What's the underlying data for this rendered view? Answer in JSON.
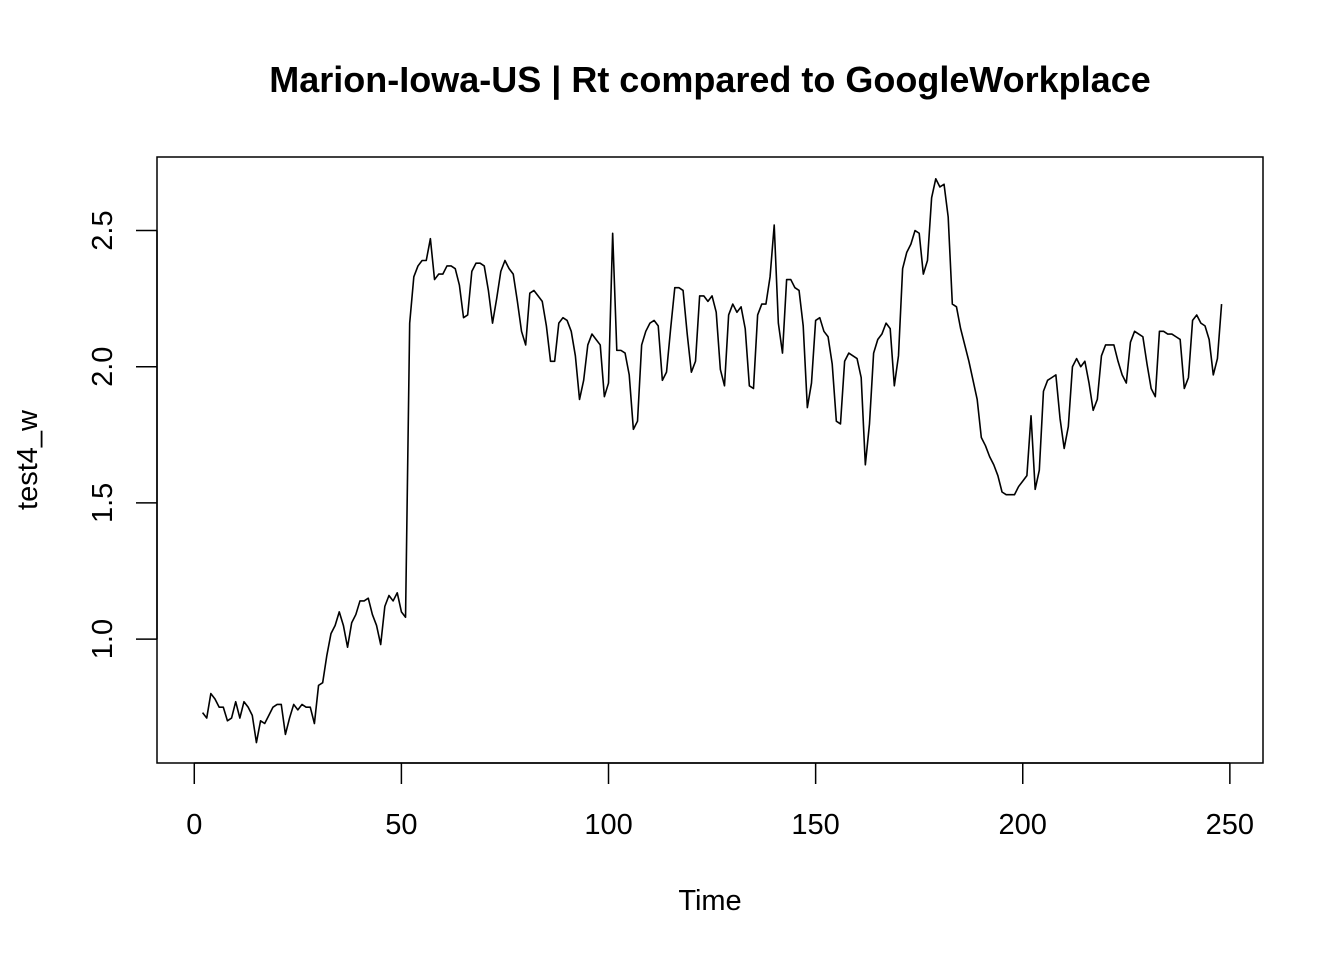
{
  "chart_data": {
    "type": "line",
    "title": "Marion-Iowa-US | Rt compared to GoogleWorkplace",
    "xlabel": "Time",
    "ylabel": "test4_w",
    "xlim": [
      -9,
      258
    ],
    "ylim": [
      0.545,
      2.77
    ],
    "xticks": [
      0,
      50,
      100,
      150,
      200,
      250
    ],
    "yticks": [
      1.0,
      1.5,
      2.0,
      2.5
    ],
    "xtick_labels": [
      "0",
      "50",
      "100",
      "150",
      "200",
      "250"
    ],
    "ytick_labels": [
      "1.0",
      "1.5",
      "2.0",
      "2.5"
    ],
    "grid": false,
    "series": [
      {
        "x": [
          2,
          3,
          4,
          5,
          6,
          7,
          8,
          9,
          10,
          11,
          12,
          13,
          14,
          15,
          16,
          17,
          18,
          19,
          20,
          21,
          22,
          23,
          24,
          25,
          26,
          27,
          28,
          29,
          30,
          31,
          32,
          33,
          34,
          35,
          36,
          37,
          38,
          39,
          40,
          41,
          42,
          43,
          44,
          45,
          46,
          47,
          48,
          49,
          50,
          51,
          52,
          53,
          54,
          55,
          56,
          57,
          58,
          59,
          60,
          61,
          62,
          63,
          64,
          65,
          66,
          67,
          68,
          69,
          70,
          71,
          72,
          73,
          74,
          75,
          76,
          77,
          78,
          79,
          80,
          81,
          82,
          83,
          84,
          85,
          86,
          87,
          88,
          89,
          90,
          91,
          92,
          93,
          94,
          95,
          96,
          97,
          98,
          99,
          100,
          101,
          102,
          103,
          104,
          105,
          106,
          107,
          108,
          109,
          110,
          111,
          112,
          113,
          114,
          115,
          116,
          117,
          118,
          119,
          120,
          121,
          122,
          123,
          124,
          125,
          126,
          127,
          128,
          129,
          130,
          131,
          132,
          133,
          134,
          135,
          136,
          137,
          138,
          139,
          140,
          141,
          142,
          143,
          144,
          145,
          146,
          147,
          148,
          149,
          150,
          151,
          152,
          153,
          154,
          155,
          156,
          157,
          158,
          159,
          160,
          161,
          162,
          163,
          164,
          165,
          166,
          167,
          168,
          169,
          170,
          171,
          172,
          173,
          174,
          175,
          176,
          177,
          178,
          179,
          180,
          181,
          182,
          183,
          184,
          185,
          186,
          187,
          188,
          189,
          190,
          191,
          192,
          193,
          194,
          195,
          196,
          197,
          198,
          199,
          200,
          201,
          202,
          203,
          204,
          205,
          206,
          207,
          208,
          209,
          210,
          211,
          212,
          213,
          214,
          215,
          216,
          217,
          218,
          219,
          220,
          221,
          222,
          223,
          224,
          225,
          226,
          227,
          228,
          229,
          230,
          231,
          232,
          233,
          234,
          235,
          236,
          237,
          238,
          239,
          240,
          241,
          242,
          243,
          244,
          245,
          246,
          247,
          248
        ],
        "values": [
          0.73,
          0.71,
          0.8,
          0.78,
          0.75,
          0.75,
          0.7,
          0.71,
          0.77,
          0.71,
          0.77,
          0.75,
          0.72,
          0.62,
          0.7,
          0.69,
          0.72,
          0.75,
          0.76,
          0.76,
          0.65,
          0.71,
          0.76,
          0.74,
          0.76,
          0.75,
          0.75,
          0.69,
          0.83,
          0.84,
          0.94,
          1.02,
          1.05,
          1.1,
          1.05,
          0.97,
          1.06,
          1.09,
          1.14,
          1.14,
          1.15,
          1.09,
          1.05,
          0.98,
          1.12,
          1.16,
          1.14,
          1.17,
          1.1,
          1.08,
          2.16,
          2.33,
          2.37,
          2.39,
          2.39,
          2.47,
          2.32,
          2.34,
          2.34,
          2.37,
          2.37,
          2.36,
          2.3,
          2.18,
          2.19,
          2.35,
          2.38,
          2.38,
          2.37,
          2.28,
          2.16,
          2.25,
          2.35,
          2.39,
          2.36,
          2.34,
          2.24,
          2.13,
          2.08,
          2.27,
          2.28,
          2.26,
          2.24,
          2.15,
          2.02,
          2.02,
          2.16,
          2.18,
          2.17,
          2.13,
          2.04,
          1.88,
          1.95,
          2.08,
          2.12,
          2.1,
          2.08,
          1.89,
          1.94,
          2.49,
          2.06,
          2.06,
          2.05,
          1.97,
          1.77,
          1.8,
          2.08,
          2.13,
          2.16,
          2.17,
          2.15,
          1.95,
          1.98,
          2.14,
          2.29,
          2.29,
          2.28,
          2.12,
          1.98,
          2.02,
          2.26,
          2.26,
          2.24,
          2.26,
          2.2,
          1.99,
          1.93,
          2.19,
          2.23,
          2.2,
          2.22,
          2.14,
          1.93,
          1.92,
          2.19,
          2.23,
          2.23,
          2.33,
          2.52,
          2.16,
          2.05,
          2.32,
          2.32,
          2.29,
          2.28,
          2.15,
          1.85,
          1.94,
          2.17,
          2.18,
          2.13,
          2.11,
          2.01,
          1.8,
          1.79,
          2.02,
          2.05,
          2.04,
          2.03,
          1.96,
          1.64,
          1.79,
          2.05,
          2.1,
          2.12,
          2.16,
          2.14,
          1.93,
          2.04,
          2.36,
          2.42,
          2.45,
          2.5,
          2.49,
          2.34,
          2.39,
          2.62,
          2.69,
          2.66,
          2.67,
          2.55,
          2.23,
          2.22,
          2.14,
          2.08,
          2.02,
          1.95,
          1.88,
          1.74,
          1.71,
          1.67,
          1.64,
          1.6,
          1.54,
          1.53,
          1.53,
          1.53,
          1.56,
          1.58,
          1.6,
          1.82,
          1.55,
          1.62,
          1.91,
          1.95,
          1.96,
          1.97,
          1.81,
          1.7,
          1.78,
          2.0,
          2.03,
          2.0,
          2.02,
          1.94,
          1.84,
          1.88,
          2.04,
          2.08,
          2.08,
          2.08,
          2.02,
          1.97,
          1.94,
          2.09,
          2.13,
          2.12,
          2.11,
          2.01,
          1.92,
          1.89,
          2.13,
          2.13,
          2.12,
          2.12,
          2.11,
          2.1,
          1.92,
          1.96,
          2.17,
          2.19,
          2.16,
          2.15,
          2.1,
          1.97,
          2.03,
          2.23
        ]
      }
    ]
  }
}
